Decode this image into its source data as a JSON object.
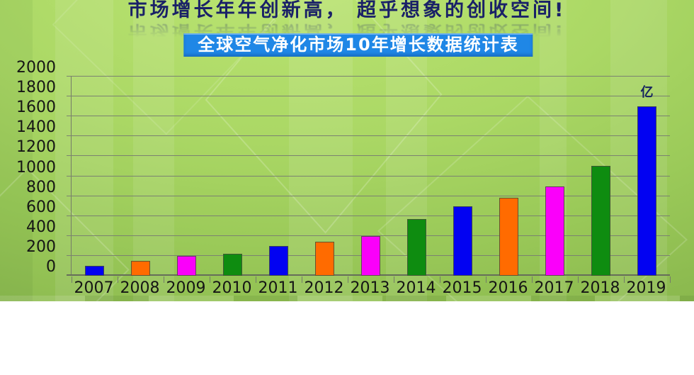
{
  "header": {
    "title": "市场增长年年创新高， 超乎想象的创收空间!",
    "subtitle": "全球空气净化市场10年增长数据统计表"
  },
  "chart_data": {
    "type": "bar",
    "title": "全球空气净化市场10年增长数据统计表",
    "categories": [
      "2007",
      "2008",
      "2009",
      "2010",
      "2011",
      "2012",
      "2013",
      "2014",
      "2015",
      "2016",
      "2017",
      "2018",
      "2019"
    ],
    "values": [
      100,
      150,
      200,
      220,
      300,
      340,
      400,
      570,
      700,
      780,
      900,
      1100,
      1700
    ],
    "unit_label": "亿",
    "xlabel": "",
    "ylabel": "",
    "ylim": [
      0,
      2000
    ],
    "y_ticks": [
      0,
      200,
      400,
      600,
      800,
      1000,
      1200,
      1400,
      1600,
      1800,
      2000
    ],
    "grid": true,
    "legend": "none",
    "bar_colors_cycle": [
      "#0202f2",
      "#ff6b00",
      "#fa00fa",
      "#0e8c10"
    ]
  },
  "colors": {
    "title_text": "#1a2167",
    "banner_background": "#1f87e6",
    "banner_text": "#ffffff",
    "background_green": "#9bca59",
    "gridline": "#7b8270"
  }
}
